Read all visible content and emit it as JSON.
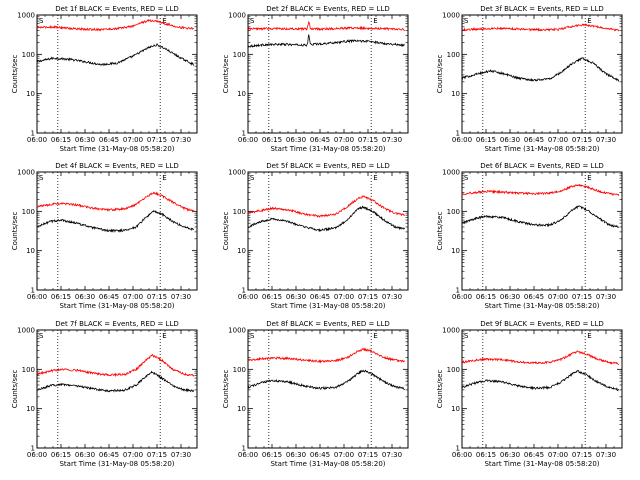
{
  "chart_data": [
    {
      "type": "line",
      "title": "Det 1f BLACK = Events, RED = LLD",
      "xlabel": "Start Time (31-May-08 05:58:20)",
      "ylabel": "Counts/sec",
      "x_tick_labels": [
        "06:00",
        "06:15",
        "06:30",
        "06:45",
        "07:00",
        "07:15",
        "07:30"
      ],
      "x_ticks_min": [
        0,
        15,
        30,
        45,
        60,
        75,
        90
      ],
      "x_range_min": [
        0,
        100
      ],
      "y_scale": "log",
      "ylim": [
        1,
        1000
      ],
      "y_tick_labels": [
        "1",
        "10",
        "100",
        "1000"
      ],
      "markers": {
        "labels": [
          "S",
          "E"
        ],
        "x_min": [
          13,
          77
        ]
      },
      "series": [
        {
          "color": "#000000",
          "x": [
            0,
            10,
            20,
            30,
            40,
            50,
            60,
            70,
            75,
            80,
            90,
            98
          ],
          "y": [
            65,
            80,
            75,
            65,
            55,
            60,
            90,
            150,
            175,
            140,
            80,
            55
          ]
        },
        {
          "color": "#ff0000",
          "x": [
            0,
            10,
            20,
            30,
            40,
            50,
            60,
            65,
            70,
            75,
            80,
            90,
            98
          ],
          "y": [
            480,
            500,
            460,
            430,
            430,
            450,
            520,
            640,
            720,
            700,
            600,
            480,
            450
          ]
        }
      ]
    },
    {
      "type": "line",
      "title": "Det 2f BLACK = Events, RED = LLD",
      "xlabel": "Start Time (31-May-08 05:58:20)",
      "ylabel": "Counts/sec",
      "x_tick_labels": [
        "06:00",
        "06:15",
        "06:30",
        "06:45",
        "07:00",
        "07:15",
        "07:30"
      ],
      "x_ticks_min": [
        0,
        15,
        30,
        45,
        60,
        75,
        90
      ],
      "x_range_min": [
        0,
        100
      ],
      "y_scale": "log",
      "ylim": [
        1,
        1000
      ],
      "y_tick_labels": [
        "1",
        "10",
        "100",
        "1000"
      ],
      "markers": {
        "labels": [
          "S",
          "E"
        ],
        "x_min": [
          13,
          77
        ]
      },
      "series": [
        {
          "color": "#000000",
          "x": [
            0,
            10,
            20,
            30,
            37,
            38,
            39,
            45,
            55,
            65,
            75,
            85,
            98
          ],
          "y": [
            160,
            175,
            180,
            175,
            170,
            320,
            180,
            185,
            200,
            220,
            215,
            190,
            170
          ]
        },
        {
          "color": "#ff0000",
          "x": [
            0,
            10,
            20,
            30,
            37,
            38,
            39,
            45,
            55,
            65,
            75,
            85,
            98
          ],
          "y": [
            440,
            450,
            450,
            440,
            440,
            700,
            450,
            440,
            450,
            470,
            460,
            450,
            430
          ]
        }
      ]
    },
    {
      "type": "line",
      "title": "Det 3f BLACK = Events, RED = LLD",
      "xlabel": "Start Time (31-May-08 05:58:20)",
      "ylabel": "Counts/sec",
      "x_tick_labels": [
        "06:00",
        "06:15",
        "06:30",
        "06:45",
        "07:00",
        "07:15",
        "07:30"
      ],
      "x_ticks_min": [
        0,
        15,
        30,
        45,
        60,
        75,
        90
      ],
      "x_range_min": [
        0,
        100
      ],
      "y_scale": "log",
      "ylim": [
        1,
        1000
      ],
      "y_tick_labels": [
        "1",
        "10",
        "100",
        "1000"
      ],
      "markers": {
        "labels": [
          "S",
          "E"
        ],
        "x_min": [
          13,
          77
        ]
      },
      "series": [
        {
          "color": "#000000",
          "x": [
            0,
            10,
            18,
            25,
            35,
            45,
            55,
            62,
            68,
            75,
            82,
            90,
            98
          ],
          "y": [
            25,
            32,
            38,
            33,
            25,
            22,
            24,
            35,
            55,
            80,
            60,
            32,
            22
          ]
        },
        {
          "color": "#ff0000",
          "x": [
            0,
            10,
            20,
            30,
            40,
            50,
            60,
            70,
            75,
            80,
            90,
            98
          ],
          "y": [
            420,
            440,
            460,
            450,
            430,
            420,
            430,
            520,
            560,
            540,
            470,
            400
          ]
        }
      ]
    },
    {
      "type": "line",
      "title": "Det 4f BLACK = Events, RED = LLD",
      "xlabel": "Start Time (31-May-08 05:58:20)",
      "ylabel": "Counts/sec",
      "x_tick_labels": [
        "06:00",
        "06:15",
        "06:30",
        "06:45",
        "07:00",
        "07:15",
        "07:30"
      ],
      "x_ticks_min": [
        0,
        15,
        30,
        45,
        60,
        75,
        90
      ],
      "x_range_min": [
        0,
        100
      ],
      "y_scale": "log",
      "ylim": [
        1,
        1000
      ],
      "y_tick_labels": [
        "1",
        "10",
        "100",
        "1000"
      ],
      "markers": {
        "labels": [
          "S",
          "E"
        ],
        "x_min": [
          13,
          77
        ]
      },
      "series": [
        {
          "color": "#000000",
          "x": [
            0,
            8,
            15,
            25,
            35,
            45,
            55,
            62,
            68,
            73,
            78,
            85,
            92,
            98
          ],
          "y": [
            40,
            55,
            60,
            50,
            38,
            32,
            33,
            40,
            70,
            100,
            85,
            55,
            40,
            35
          ]
        },
        {
          "color": "#ff0000",
          "x": [
            0,
            8,
            15,
            25,
            35,
            45,
            55,
            62,
            68,
            73,
            78,
            85,
            92,
            98
          ],
          "y": [
            130,
            150,
            160,
            145,
            120,
            110,
            115,
            150,
            230,
            300,
            250,
            170,
            120,
            100
          ]
        }
      ]
    },
    {
      "type": "line",
      "title": "Det 5f BLACK = Events, RED = LLD",
      "xlabel": "Start Time (31-May-08 05:58:20)",
      "ylabel": "Counts/sec",
      "x_tick_labels": [
        "06:00",
        "06:15",
        "06:30",
        "06:45",
        "07:00",
        "07:15",
        "07:30"
      ],
      "x_ticks_min": [
        0,
        15,
        30,
        45,
        60,
        75,
        90
      ],
      "x_range_min": [
        0,
        100
      ],
      "y_scale": "log",
      "ylim": [
        1,
        1000
      ],
      "y_tick_labels": [
        "1",
        "10",
        "100",
        "1000"
      ],
      "markers": {
        "labels": [
          "S",
          "E"
        ],
        "x_min": [
          13,
          77
        ]
      },
      "series": [
        {
          "color": "#000000",
          "x": [
            0,
            8,
            15,
            25,
            35,
            45,
            55,
            62,
            68,
            72,
            78,
            85,
            92,
            98
          ],
          "y": [
            40,
            55,
            65,
            55,
            40,
            33,
            38,
            60,
            110,
            130,
            100,
            60,
            40,
            35
          ]
        },
        {
          "color": "#ff0000",
          "x": [
            0,
            8,
            15,
            25,
            35,
            45,
            55,
            62,
            68,
            72,
            78,
            85,
            92,
            98
          ],
          "y": [
            90,
            105,
            120,
            110,
            85,
            75,
            85,
            130,
            200,
            240,
            190,
            120,
            90,
            80
          ]
        }
      ]
    },
    {
      "type": "line",
      "title": "Det 6f BLACK = Events, RED = LLD",
      "xlabel": "Start Time (31-May-08 05:58:20)",
      "ylabel": "Counts/sec",
      "x_tick_labels": [
        "06:00",
        "06:15",
        "06:30",
        "06:45",
        "07:00",
        "07:15",
        "07:30"
      ],
      "x_ticks_min": [
        0,
        15,
        30,
        45,
        60,
        75,
        90
      ],
      "x_range_min": [
        0,
        100
      ],
      "y_scale": "log",
      "ylim": [
        1,
        1000
      ],
      "y_tick_labels": [
        "1",
        "10",
        "100",
        "1000"
      ],
      "markers": {
        "labels": [
          "S",
          "E"
        ],
        "x_min": [
          13,
          77
        ]
      },
      "series": [
        {
          "color": "#000000",
          "x": [
            0,
            8,
            15,
            25,
            35,
            45,
            55,
            62,
            68,
            73,
            78,
            85,
            92,
            98
          ],
          "y": [
            50,
            65,
            75,
            70,
            55,
            45,
            45,
            60,
            100,
            135,
            110,
            70,
            45,
            40
          ]
        },
        {
          "color": "#ff0000",
          "x": [
            0,
            8,
            15,
            25,
            35,
            45,
            55,
            62,
            68,
            73,
            78,
            85,
            92,
            98
          ],
          "y": [
            280,
            300,
            320,
            310,
            290,
            280,
            290,
            330,
            420,
            470,
            420,
            330,
            280,
            260
          ]
        }
      ]
    },
    {
      "type": "line",
      "title": "Det 7f BLACK = Events, RED = LLD",
      "xlabel": "Start Time (31-May-08 05:58:20)",
      "ylabel": "Counts/sec",
      "x_tick_labels": [
        "06:00",
        "06:15",
        "06:30",
        "06:45",
        "07:00",
        "07:15",
        "07:30"
      ],
      "x_ticks_min": [
        0,
        15,
        30,
        45,
        60,
        75,
        90
      ],
      "x_range_min": [
        0,
        100
      ],
      "y_scale": "log",
      "ylim": [
        1,
        1000
      ],
      "y_tick_labels": [
        "1",
        "10",
        "100",
        "1000"
      ],
      "markers": {
        "labels": [
          "S",
          "E"
        ],
        "x_min": [
          13,
          77
        ]
      },
      "series": [
        {
          "color": "#000000",
          "x": [
            0,
            8,
            15,
            25,
            35,
            45,
            55,
            62,
            68,
            72,
            78,
            85,
            92,
            98
          ],
          "y": [
            30,
            38,
            42,
            38,
            32,
            28,
            30,
            40,
            65,
            85,
            60,
            38,
            30,
            28
          ]
        },
        {
          "color": "#ff0000",
          "x": [
            0,
            8,
            15,
            25,
            35,
            45,
            55,
            62,
            68,
            72,
            78,
            85,
            92,
            98
          ],
          "y": [
            75,
            90,
            100,
            95,
            80,
            72,
            75,
            100,
            170,
            230,
            170,
            100,
            75,
            70
          ]
        }
      ]
    },
    {
      "type": "line",
      "title": "Det 8f BLACK = Events, RED = LLD",
      "xlabel": "Start Time (31-May-08 05:58:20)",
      "ylabel": "Counts/sec",
      "x_tick_labels": [
        "06:00",
        "06:15",
        "06:30",
        "06:45",
        "07:00",
        "07:15",
        "07:30"
      ],
      "x_ticks_min": [
        0,
        15,
        30,
        45,
        60,
        75,
        90
      ],
      "x_range_min": [
        0,
        100
      ],
      "y_scale": "log",
      "ylim": [
        1,
        1000
      ],
      "y_tick_labels": [
        "1",
        "10",
        "100",
        "1000"
      ],
      "markers": {
        "labels": [
          "S",
          "E"
        ],
        "x_min": [
          13,
          77
        ]
      },
      "series": [
        {
          "color": "#000000",
          "x": [
            0,
            8,
            15,
            25,
            35,
            45,
            55,
            62,
            68,
            72,
            78,
            85,
            92,
            98
          ],
          "y": [
            35,
            45,
            52,
            48,
            38,
            33,
            35,
            48,
            75,
            95,
            75,
            48,
            36,
            32
          ]
        },
        {
          "color": "#ff0000",
          "x": [
            0,
            8,
            15,
            25,
            35,
            45,
            55,
            62,
            68,
            72,
            78,
            85,
            92,
            98
          ],
          "y": [
            170,
            185,
            195,
            190,
            170,
            160,
            165,
            200,
            280,
            330,
            280,
            200,
            170,
            160
          ]
        }
      ]
    },
    {
      "type": "line",
      "title": "Det 9f BLACK = Events, RED = LLD",
      "xlabel": "Start Time (31-May-08 05:58:20)",
      "ylabel": "Counts/sec",
      "x_tick_labels": [
        "06:00",
        "06:15",
        "06:30",
        "06:45",
        "07:00",
        "07:15",
        "07:30"
      ],
      "x_ticks_min": [
        0,
        15,
        30,
        45,
        60,
        75,
        90
      ],
      "x_range_min": [
        0,
        100
      ],
      "y_scale": "log",
      "ylim": [
        1,
        1000
      ],
      "y_tick_labels": [
        "1",
        "10",
        "100",
        "1000"
      ],
      "markers": {
        "labels": [
          "S",
          "E"
        ],
        "x_min": [
          13,
          77
        ]
      },
      "series": [
        {
          "color": "#000000",
          "x": [
            0,
            8,
            15,
            25,
            35,
            45,
            55,
            62,
            68,
            72,
            78,
            85,
            92,
            98
          ],
          "y": [
            35,
            45,
            52,
            48,
            38,
            33,
            35,
            48,
            72,
            92,
            72,
            46,
            35,
            30
          ]
        },
        {
          "color": "#ff0000",
          "x": [
            0,
            8,
            15,
            25,
            35,
            45,
            55,
            62,
            68,
            72,
            78,
            85,
            92,
            98
          ],
          "y": [
            150,
            170,
            180,
            175,
            155,
            145,
            150,
            180,
            240,
            280,
            240,
            180,
            150,
            140
          ]
        }
      ]
    }
  ]
}
